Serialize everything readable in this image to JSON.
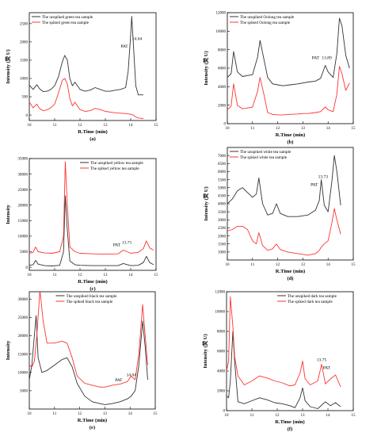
{
  "chart_data": [
    {
      "type": "line",
      "panel_label": "(a)",
      "xlabel": "R.Time (min)",
      "ylabel": "Intensity (荧 U)",
      "xlim": [
        10,
        15
      ],
      "ylim": [
        -150,
        2800
      ],
      "xticks": [
        10,
        11,
        12,
        13,
        14,
        15
      ],
      "yticks": [
        0,
        500,
        1000,
        1500,
        2000,
        2500
      ],
      "grid": false,
      "legend_position": "top-left",
      "annotations": [
        {
          "text": "PAT",
          "x": 13.75,
          "y": 1850
        },
        {
          "text": "14.04",
          "x": 14.25,
          "y": 2050
        }
      ],
      "series": [
        {
          "name": "The unspiked green tea sample",
          "color": "#333333",
          "x": [
            10.0,
            10.15,
            10.3,
            10.4,
            10.55,
            10.7,
            10.85,
            11.0,
            11.15,
            11.3,
            11.4,
            11.5,
            11.6,
            11.7,
            11.8,
            11.9,
            12.0,
            12.2,
            12.4,
            12.6,
            12.8,
            13.0,
            13.2,
            13.4,
            13.6,
            13.8,
            13.9,
            14.0,
            14.04,
            14.1,
            14.2,
            14.3,
            14.5
          ],
          "y": [
            820,
            700,
            830,
            720,
            640,
            650,
            700,
            800,
            1050,
            1450,
            1630,
            1500,
            1000,
            800,
            900,
            800,
            700,
            650,
            680,
            750,
            700,
            650,
            650,
            680,
            700,
            750,
            1200,
            2200,
            2700,
            2000,
            800,
            550,
            550
          ]
        },
        {
          "name": "The spiked green tea sample",
          "color": "#ff3333",
          "x": [
            10.0,
            10.15,
            10.3,
            10.4,
            10.55,
            10.7,
            10.85,
            11.0,
            11.15,
            11.3,
            11.4,
            11.5,
            11.6,
            11.7,
            11.8,
            11.9,
            12.0,
            12.2,
            12.4,
            12.6,
            12.8,
            13.0,
            13.2,
            13.4,
            13.6,
            13.8,
            13.9,
            14.0,
            14.04,
            14.1,
            14.2,
            14.3,
            14.5
          ],
          "y": [
            350,
            200,
            300,
            180,
            120,
            140,
            200,
            300,
            600,
            950,
            1000,
            850,
            450,
            250,
            350,
            250,
            150,
            100,
            120,
            180,
            150,
            100,
            80,
            60,
            50,
            40,
            30,
            20,
            10,
            0,
            -50,
            -80,
            -100
          ]
        }
      ]
    },
    {
      "type": "line",
      "panel_label": "(b)",
      "xlabel": "R.Time (min)",
      "ylabel": "Intensity (荧 U)",
      "xlim": [
        10,
        15
      ],
      "ylim": [
        0,
        12000
      ],
      "xticks": [
        10,
        11,
        12,
        13,
        14,
        15
      ],
      "yticks": [
        0,
        2000,
        4000,
        6000,
        8000,
        10000,
        12000
      ],
      "grid": false,
      "legend_position": "top-left",
      "annotations": [
        {
          "text": "PAT",
          "x": 13.5,
          "y": 7000
        },
        {
          "text": "13.89",
          "x": 13.95,
          "y": 7000
        }
      ],
      "series": [
        {
          "name": "The unspiked Oolong tea sample",
          "color": "#333333",
          "x": [
            10.0,
            10.15,
            10.25,
            10.4,
            10.6,
            10.8,
            11.0,
            11.2,
            11.3,
            11.45,
            11.6,
            11.8,
            12.0,
            12.2,
            12.5,
            12.8,
            13.0,
            13.2,
            13.5,
            13.7,
            13.89,
            14.0,
            14.2,
            14.35,
            14.45,
            14.55,
            14.7,
            14.85
          ],
          "y": [
            5000,
            5400,
            7800,
            5600,
            5100,
            5200,
            5300,
            7200,
            9000,
            7000,
            5000,
            4300,
            4200,
            4100,
            4200,
            4300,
            4400,
            4500,
            4600,
            4900,
            6300,
            5600,
            5000,
            7600,
            11400,
            10600,
            7400,
            6000
          ]
        },
        {
          "name": "The spiked Oolong tea sample",
          "color": "#ff3333",
          "x": [
            10.0,
            10.15,
            10.25,
            10.4,
            10.6,
            10.8,
            11.0,
            11.2,
            11.3,
            11.45,
            11.6,
            11.8,
            12.0,
            12.2,
            12.5,
            12.8,
            13.0,
            13.2,
            13.5,
            13.7,
            13.89,
            14.0,
            14.2,
            14.35,
            14.45,
            14.55,
            14.7,
            14.85
          ],
          "y": [
            1500,
            1900,
            4300,
            2000,
            1600,
            1700,
            1800,
            3500,
            5000,
            3200,
            1200,
            1000,
            950,
            950,
            1000,
            1050,
            1100,
            1100,
            1200,
            1300,
            1800,
            1500,
            1300,
            3200,
            6200,
            5400,
            3600,
            4400
          ]
        }
      ]
    },
    {
      "type": "line",
      "panel_label": "(c)",
      "xlabel": "R.Time (min)",
      "ylabel": "Intensity",
      "xlim": [
        10,
        15
      ],
      "ylim": [
        -1000,
        35000
      ],
      "xticks": [
        10,
        11,
        12,
        13,
        14,
        15
      ],
      "yticks": [
        0,
        5000,
        10000,
        15000,
        20000,
        25000,
        30000,
        35000
      ],
      "grid": false,
      "legend_position": "top-right",
      "annotations": [
        {
          "text": "PAT",
          "x": 13.45,
          "y": 6800
        },
        {
          "text": "13.71",
          "x": 13.85,
          "y": 7600
        }
      ],
      "series": [
        {
          "name": "The unspiked yellow tea sample",
          "color": "#333333",
          "x": [
            10.0,
            10.15,
            10.25,
            10.35,
            10.6,
            10.9,
            11.2,
            11.35,
            11.42,
            11.5,
            11.6,
            11.8,
            12.0,
            12.5,
            13.0,
            13.5,
            13.71,
            14.0,
            14.3,
            14.5,
            14.62,
            14.75,
            14.9
          ],
          "y": [
            600,
            800,
            2200,
            1000,
            500,
            400,
            600,
            5000,
            23000,
            12000,
            2000,
            800,
            600,
            500,
            500,
            500,
            1200,
            500,
            600,
            1500,
            3500,
            1500,
            800
          ]
        },
        {
          "name": "The spiked yellow tea sample",
          "color": "#ff3333",
          "x": [
            10.0,
            10.15,
            10.25,
            10.35,
            10.6,
            10.9,
            11.2,
            11.35,
            11.42,
            11.5,
            11.6,
            11.8,
            12.0,
            12.5,
            13.0,
            13.5,
            13.71,
            14.0,
            14.3,
            14.5,
            14.62,
            14.75,
            14.9
          ],
          "y": [
            4500,
            4800,
            6500,
            5000,
            4600,
            4500,
            5000,
            10000,
            34000,
            20000,
            6500,
            5000,
            4500,
            4300,
            4200,
            4300,
            5500,
            4500,
            4800,
            6000,
            8500,
            6200,
            5500
          ]
        }
      ]
    },
    {
      "type": "line",
      "panel_label": "(d)",
      "xlabel": "R.Time (min)",
      "ylabel": "Intensity (荧 U)",
      "xlim": [
        10,
        15
      ],
      "ylim": [
        500,
        7500
      ],
      "xticks": [
        10,
        11,
        12,
        13,
        14,
        15
      ],
      "yticks": [
        1000,
        1500,
        2000,
        2500,
        3000,
        3500,
        4000,
        4500,
        5000,
        5500,
        6000,
        6500,
        7000
      ],
      "grid": false,
      "legend_position": "top-left",
      "annotations": [
        {
          "text": "PAT",
          "x": 13.45,
          "y": 5100
        },
        {
          "text": "13.73",
          "x": 13.8,
          "y": 5600
        }
      ],
      "series": [
        {
          "name": "The unspiked white tea sample",
          "color": "#333333",
          "x": [
            10.0,
            10.2,
            10.4,
            10.6,
            10.8,
            11.0,
            11.15,
            11.25,
            11.4,
            11.6,
            11.8,
            11.95,
            12.1,
            12.4,
            12.8,
            13.2,
            13.5,
            13.65,
            13.73,
            13.85,
            14.0,
            14.15,
            14.25,
            14.35,
            14.5
          ],
          "y": [
            4000,
            4300,
            4800,
            5000,
            4700,
            4400,
            4600,
            5600,
            4000,
            3300,
            3400,
            4000,
            3400,
            3200,
            3200,
            3300,
            3600,
            4200,
            5500,
            3900,
            3500,
            5400,
            7000,
            6000,
            3900
          ]
        },
        {
          "name": "The spiked white tea sample",
          "color": "#ff3333",
          "x": [
            10.0,
            10.2,
            10.4,
            10.6,
            10.8,
            11.0,
            11.15,
            11.25,
            11.4,
            11.6,
            11.8,
            11.95,
            12.1,
            12.4,
            12.8,
            13.2,
            13.5,
            13.65,
            13.73,
            13.85,
            14.0,
            14.15,
            14.25,
            14.35,
            14.5
          ],
          "y": [
            2300,
            2400,
            2600,
            2600,
            2400,
            1700,
            1500,
            2200,
            1400,
            1100,
            1200,
            1500,
            1150,
            1000,
            900,
            800,
            900,
            1100,
            1300,
            1500,
            1700,
            2800,
            3700,
            3000,
            2100
          ]
        }
      ]
    },
    {
      "type": "line",
      "panel_label": "(e)",
      "xlabel": "R.Time (min)",
      "ylabel": "Intensity",
      "xlim": [
        10,
        15
      ],
      "ylim": [
        0,
        32000
      ],
      "xticks": [
        10,
        11,
        12,
        13,
        14,
        15
      ],
      "yticks": [
        5000,
        10000,
        15000,
        20000,
        25000,
        30000
      ],
      "grid": false,
      "legend_position": "top-center",
      "annotations": [
        {
          "text": "PAT",
          "x": 13.55,
          "y": 7600
        },
        {
          "text": "14.04",
          "x": 14.05,
          "y": 9000
        }
      ],
      "series": [
        {
          "name": "The unspiked black tea sample",
          "color": "#333333",
          "x": [
            10.0,
            10.1,
            10.2,
            10.27,
            10.35,
            10.5,
            10.7,
            11.0,
            11.3,
            11.5,
            11.7,
            11.9,
            12.2,
            12.5,
            12.8,
            13.0,
            13.3,
            13.6,
            13.9,
            14.04,
            14.2,
            14.35,
            14.5,
            14.6,
            14.7
          ],
          "y": [
            8000,
            12000,
            20000,
            25500,
            14000,
            10000,
            10500,
            12000,
            13500,
            14000,
            11500,
            7000,
            3500,
            2000,
            1500,
            1200,
            1500,
            2000,
            2800,
            3500,
            5000,
            12000,
            24000,
            17000,
            8000
          ]
        },
        {
          "name": "The spiked black tea sample",
          "color": "#ff3333",
          "x": [
            10.0,
            10.1,
            10.2,
            10.3,
            10.42,
            10.55,
            10.7,
            11.0,
            11.3,
            11.5,
            11.7,
            11.9,
            12.2,
            12.5,
            12.8,
            13.0,
            13.3,
            13.6,
            13.9,
            14.04,
            14.2,
            14.35,
            14.5,
            14.6,
            14.7
          ],
          "y": [
            12000,
            11500,
            13000,
            20000,
            32500,
            24000,
            18000,
            18000,
            18500,
            18000,
            14000,
            9000,
            7000,
            6500,
            6000,
            6000,
            6500,
            6800,
            7500,
            9000,
            8000,
            15000,
            28500,
            20000,
            12000
          ]
        }
      ]
    },
    {
      "type": "line",
      "panel_label": "(f)",
      "xlabel": "R.Time (min)",
      "ylabel": "Intensity (荧 U)",
      "xlim": [
        10,
        15
      ],
      "ylim": [
        0,
        12000
      ],
      "xticks": [
        10,
        11,
        12,
        13,
        14,
        15
      ],
      "yticks": [
        0,
        2000,
        4000,
        6000,
        8000,
        10000,
        12000
      ],
      "grid": false,
      "legend_position": "top-right",
      "annotations": [
        {
          "text": "13.75",
          "x": 13.75,
          "y": 5000
        },
        {
          "text": "PAT",
          "x": 13.95,
          "y": 4200
        }
      ],
      "series": [
        {
          "name": "The unspiked dark tea sample",
          "color": "#333333",
          "x": [
            10.0,
            10.08,
            10.15,
            10.25,
            10.32,
            10.45,
            10.7,
            11.0,
            11.3,
            11.6,
            11.9,
            12.2,
            12.5,
            12.7,
            12.9,
            13.0,
            13.1,
            13.3,
            13.6,
            13.9,
            14.1,
            14.3,
            14.5
          ],
          "y": [
            1500,
            1300,
            3000,
            8000,
            5000,
            900,
            700,
            1000,
            1300,
            1100,
            800,
            700,
            500,
            300,
            1300,
            2300,
            1000,
            400,
            200,
            900,
            500,
            800,
            400
          ]
        },
        {
          "name": "The spiked dark tea sample",
          "color": "#ff3333",
          "x": [
            10.0,
            10.08,
            10.15,
            10.25,
            10.32,
            10.45,
            10.7,
            11.0,
            11.3,
            11.6,
            11.9,
            12.2,
            12.5,
            12.7,
            12.9,
            13.0,
            13.1,
            13.3,
            13.6,
            13.75,
            13.9,
            14.1,
            14.3,
            14.5
          ],
          "y": [
            4000,
            5000,
            11500,
            8500,
            5500,
            3500,
            2600,
            3000,
            3500,
            3300,
            3000,
            2800,
            2500,
            2600,
            3800,
            5000,
            3200,
            2600,
            3000,
            4700,
            2700,
            3200,
            3600,
            2400
          ]
        }
      ]
    }
  ]
}
